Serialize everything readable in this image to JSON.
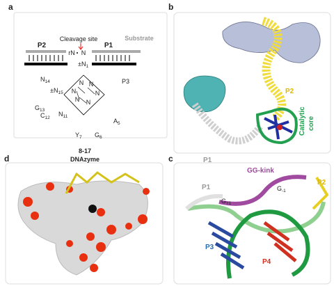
{
  "panel_a": {
    "label": "a",
    "cleavage_site": "Cleavage site",
    "substrate": "Substrate",
    "p2": "P2",
    "p1": "P1",
    "rn": "rN",
    "n": "N",
    "nucleotides": [
      {
        "main": "±N",
        "sub": "1"
      },
      {
        "main": "N",
        "sub": "14"
      },
      {
        "main": "±N",
        "sub": "15"
      },
      {
        "main": "G",
        "sub": "13"
      },
      {
        "main": "C",
        "sub": "12"
      },
      {
        "main": "N",
        "sub": "11"
      },
      {
        "main": "A",
        "sub": "5"
      },
      {
        "main": "Y",
        "sub": "7"
      },
      {
        "main": "G",
        "sub": "6"
      }
    ],
    "p3": "P3",
    "core_bases": [
      "N",
      "N",
      "N",
      "N",
      "N",
      "N"
    ],
    "name": "8-17",
    "kind": "DNAzyme"
  },
  "panel_b": {
    "label": "b",
    "p2": "P2",
    "p1": "P1",
    "catalytic": "Catalytic",
    "core": "core"
  },
  "panel_c": {
    "label": "c",
    "gg_kink": "GG-kink",
    "p2": "P2",
    "p1": "P1",
    "g_plus": {
      "main": "G",
      "sub": "+1"
    },
    "g_minus": {
      "main": "G",
      "sub": "-1"
    },
    "p3": "P3",
    "p4": "P4"
  },
  "panel_d": {
    "label": "d"
  }
}
